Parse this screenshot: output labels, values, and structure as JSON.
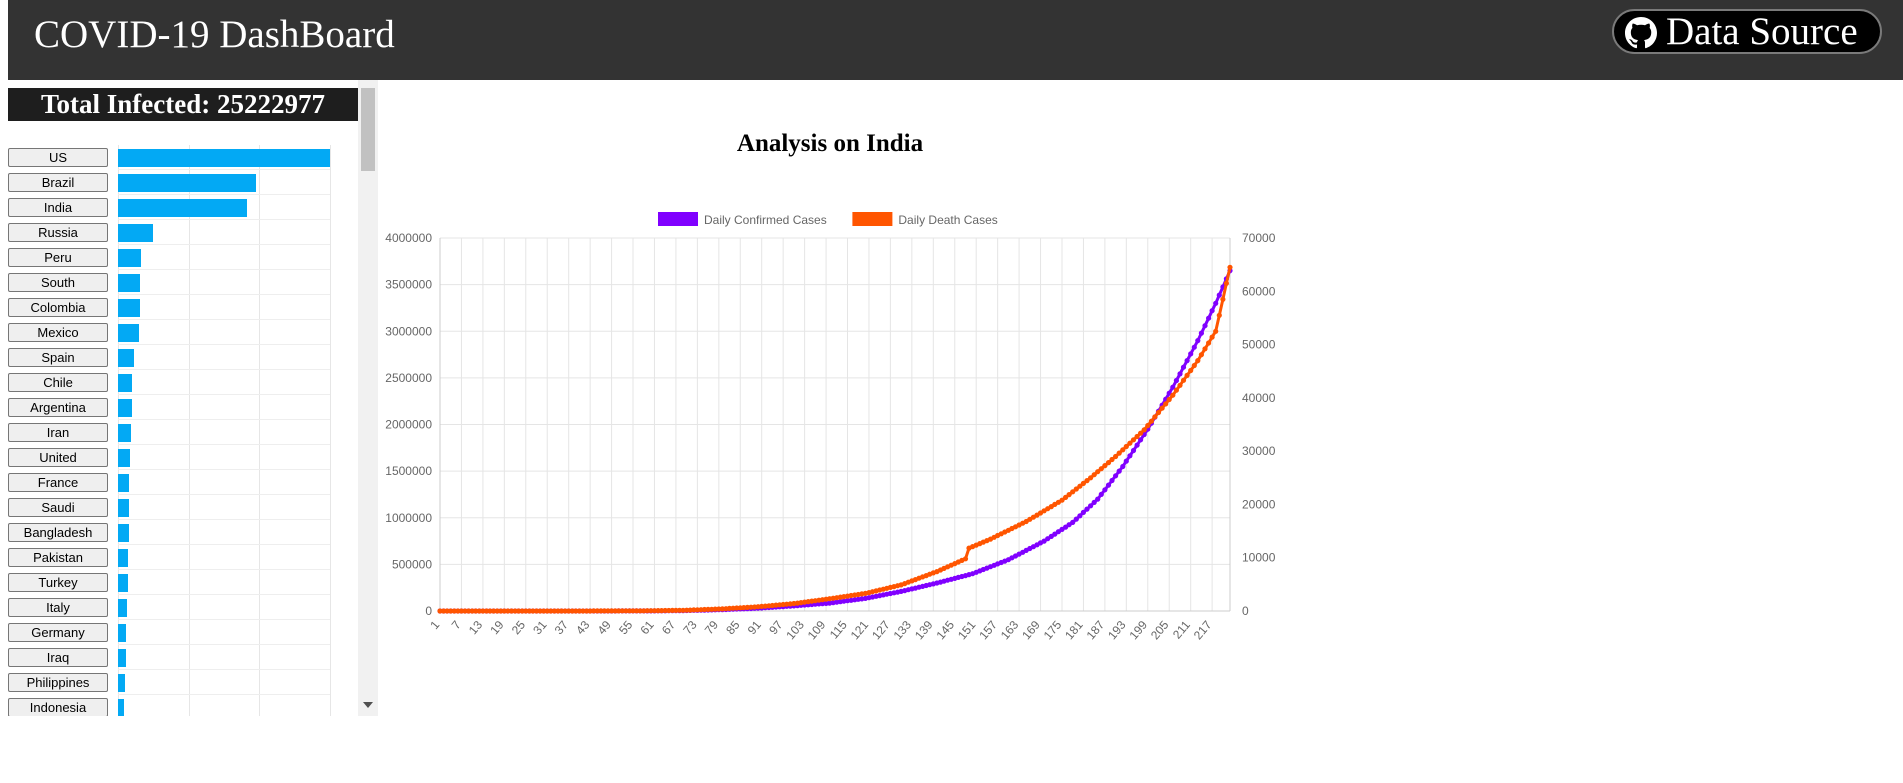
{
  "header": {
    "title": "COVID-19 DashBoard",
    "source_label": "Data Source",
    "source_icon": "github-icon"
  },
  "sidebar": {
    "total_label": "Total Infected: 25222977",
    "bar_color": "#03a9f4",
    "countries": [
      {
        "name": "US",
        "share": 1.0
      },
      {
        "name": "Brazil",
        "share": 0.65
      },
      {
        "name": "India",
        "share": 0.61
      },
      {
        "name": "Russia",
        "share": 0.165
      },
      {
        "name": "Peru",
        "share": 0.11
      },
      {
        "name": "South",
        "share": 0.105
      },
      {
        "name": "Colombia",
        "share": 0.102
      },
      {
        "name": "Mexico",
        "share": 0.1
      },
      {
        "name": "Spain",
        "share": 0.075
      },
      {
        "name": "Chile",
        "share": 0.068
      },
      {
        "name": "Argentina",
        "share": 0.066
      },
      {
        "name": "Iran",
        "share": 0.062
      },
      {
        "name": "United",
        "share": 0.055
      },
      {
        "name": "France",
        "share": 0.051
      },
      {
        "name": "Saudi",
        "share": 0.05
      },
      {
        "name": "Bangladesh",
        "share": 0.05
      },
      {
        "name": "Pakistan",
        "share": 0.048
      },
      {
        "name": "Turkey",
        "share": 0.045
      },
      {
        "name": "Italy",
        "share": 0.043
      },
      {
        "name": "Germany",
        "share": 0.04
      },
      {
        "name": "Iraq",
        "share": 0.037
      },
      {
        "name": "Philippines",
        "share": 0.035
      },
      {
        "name": "Indonesia",
        "share": 0.03
      }
    ]
  },
  "chart_data": {
    "type": "line",
    "title": "Analysis on India",
    "legend_position": "top",
    "grid": true,
    "x_ticks": [
      "1",
      "7",
      "13",
      "19",
      "25",
      "31",
      "37",
      "43",
      "49",
      "55",
      "61",
      "67",
      "73",
      "79",
      "85",
      "91",
      "97",
      "103",
      "109",
      "115",
      "121",
      "127",
      "133",
      "139",
      "145",
      "151",
      "157",
      "163",
      "169",
      "175",
      "181",
      "187",
      "193",
      "199",
      "205",
      "211",
      "217"
    ],
    "x_range": [
      1,
      222
    ],
    "y_left": {
      "range": [
        0,
        4000000
      ],
      "ticks": [
        "0",
        "500000",
        "1000000",
        "1500000",
        "2000000",
        "2500000",
        "3000000",
        "3500000",
        "4000000"
      ]
    },
    "y_right": {
      "range": [
        0,
        70000
      ],
      "ticks": [
        "0",
        "10000",
        "20000",
        "30000",
        "40000",
        "50000",
        "60000",
        "70000"
      ]
    },
    "series": [
      {
        "name": "Daily Confirmed Cases",
        "color": "#8000ff",
        "axis": "left",
        "points": [
          [
            1,
            0
          ],
          [
            40,
            0
          ],
          [
            60,
            1000
          ],
          [
            70,
            5000
          ],
          [
            80,
            15000
          ],
          [
            90,
            30000
          ],
          [
            100,
            55000
          ],
          [
            110,
            85000
          ],
          [
            120,
            135000
          ],
          [
            130,
            210000
          ],
          [
            140,
            300000
          ],
          [
            150,
            400000
          ],
          [
            160,
            550000
          ],
          [
            170,
            750000
          ],
          [
            178,
            950000
          ],
          [
            185,
            1200000
          ],
          [
            192,
            1550000
          ],
          [
            199,
            1950000
          ],
          [
            206,
            2400000
          ],
          [
            213,
            2900000
          ],
          [
            218,
            3300000
          ],
          [
            222,
            3650000
          ]
        ]
      },
      {
        "name": "Daily Death Cases",
        "color": "#ff5500",
        "axis": "right",
        "points": [
          [
            1,
            0
          ],
          [
            40,
            0
          ],
          [
            60,
            50
          ],
          [
            70,
            150
          ],
          [
            80,
            400
          ],
          [
            90,
            800
          ],
          [
            100,
            1400
          ],
          [
            110,
            2300
          ],
          [
            120,
            3300
          ],
          [
            130,
            4900
          ],
          [
            140,
            7400
          ],
          [
            148,
            9800
          ],
          [
            149,
            11800
          ],
          [
            155,
            13500
          ],
          [
            165,
            16800
          ],
          [
            175,
            20800
          ],
          [
            183,
            25000
          ],
          [
            190,
            29000
          ],
          [
            198,
            34000
          ],
          [
            206,
            40500
          ],
          [
            213,
            47000
          ],
          [
            218,
            52500
          ],
          [
            222,
            64500
          ]
        ]
      }
    ]
  }
}
